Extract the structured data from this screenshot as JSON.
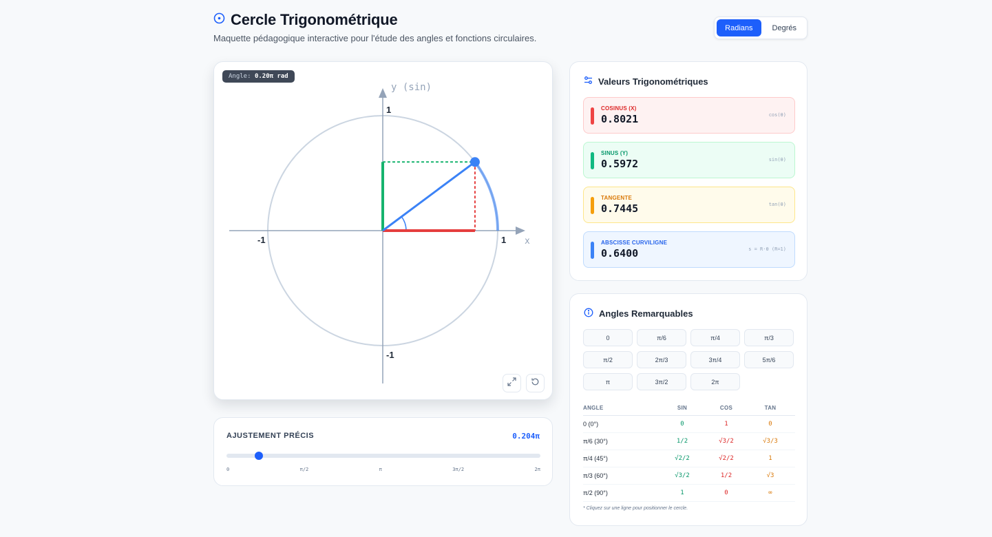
{
  "header": {
    "title": "Cercle Trigonométrique",
    "subtitle": "Maquette pédagogique interactive pour l'étude des angles et fonctions circulaires.",
    "mode_toggle": {
      "radians_label": "Radians",
      "degrees_label": "Degrés",
      "selected": "Radians"
    }
  },
  "circle": {
    "angle_badge_label": "Angle:",
    "angle_badge_value": "0.20π rad",
    "angle_rad": 0.64,
    "axis_y_label": "y (sin)",
    "axis_x_label": "x",
    "tick_pos_x": "1",
    "tick_neg_x": "-1",
    "tick_pos_y": "1",
    "tick_neg_y": "-1",
    "colors": {
      "cos": "#e53e3e",
      "sin": "#16b36e",
      "radius": "#3b82f6",
      "circle": "#cbd5e1",
      "axes": "#94a3b8"
    }
  },
  "slider": {
    "label": "AJUSTEMENT PRÉCIS",
    "value_label": "0.204π",
    "fraction": 0.102,
    "ticks": [
      "0",
      "π/2",
      "π",
      "3π/2",
      "2π"
    ]
  },
  "values": {
    "title": "Valeurs Trigonométriques",
    "items": [
      {
        "label": "COSINUS (X)",
        "value": "0.8021",
        "formula": "cos(θ)",
        "accent": "#ef4444",
        "bg": "#fef2f2",
        "border": "#fecaca",
        "label_color": "#dc2626"
      },
      {
        "label": "SINUS (Y)",
        "value": "0.5972",
        "formula": "sin(θ)",
        "accent": "#10b981",
        "bg": "#ecfdf5",
        "border": "#bbf7d0",
        "label_color": "#059669"
      },
      {
        "label": "TANGENTE",
        "value": "0.7445",
        "formula": "tan(θ)",
        "accent": "#f59e0b",
        "bg": "#fffbeb",
        "border": "#fde68a",
        "label_color": "#d97706"
      },
      {
        "label": "ABSCISSE CURVILIGNE",
        "value": "0.6400",
        "formula": "s = R·θ (R=1)",
        "accent": "#3b82f6",
        "bg": "#eff6ff",
        "border": "#bfdbfe",
        "label_color": "#2563eb"
      }
    ]
  },
  "angles": {
    "title": "Angles Remarquables",
    "buttons": [
      "0",
      "π/6",
      "π/4",
      "π/3",
      "π/2",
      "2π/3",
      "3π/4",
      "5π/6",
      "π",
      "3π/2",
      "2π"
    ],
    "table_headers": [
      "ANGLE",
      "SIN",
      "COS",
      "TAN"
    ],
    "rows": [
      {
        "angle": "0 (0°)",
        "sin": "0",
        "cos": "1",
        "tan": "0"
      },
      {
        "angle": "π/6 (30°)",
        "sin": "1/2",
        "cos": "√3/2",
        "tan": "√3/3"
      },
      {
        "angle": "π/4 (45°)",
        "sin": "√2/2",
        "cos": "√2/2",
        "tan": "1"
      },
      {
        "angle": "π/3 (60°)",
        "sin": "√3/2",
        "cos": "1/2",
        "tan": "√3"
      },
      {
        "angle": "π/2 (90°)",
        "sin": "1",
        "cos": "0",
        "tan": "∞"
      }
    ],
    "note": "* Cliquez sur une ligne pour positionner le cercle."
  }
}
